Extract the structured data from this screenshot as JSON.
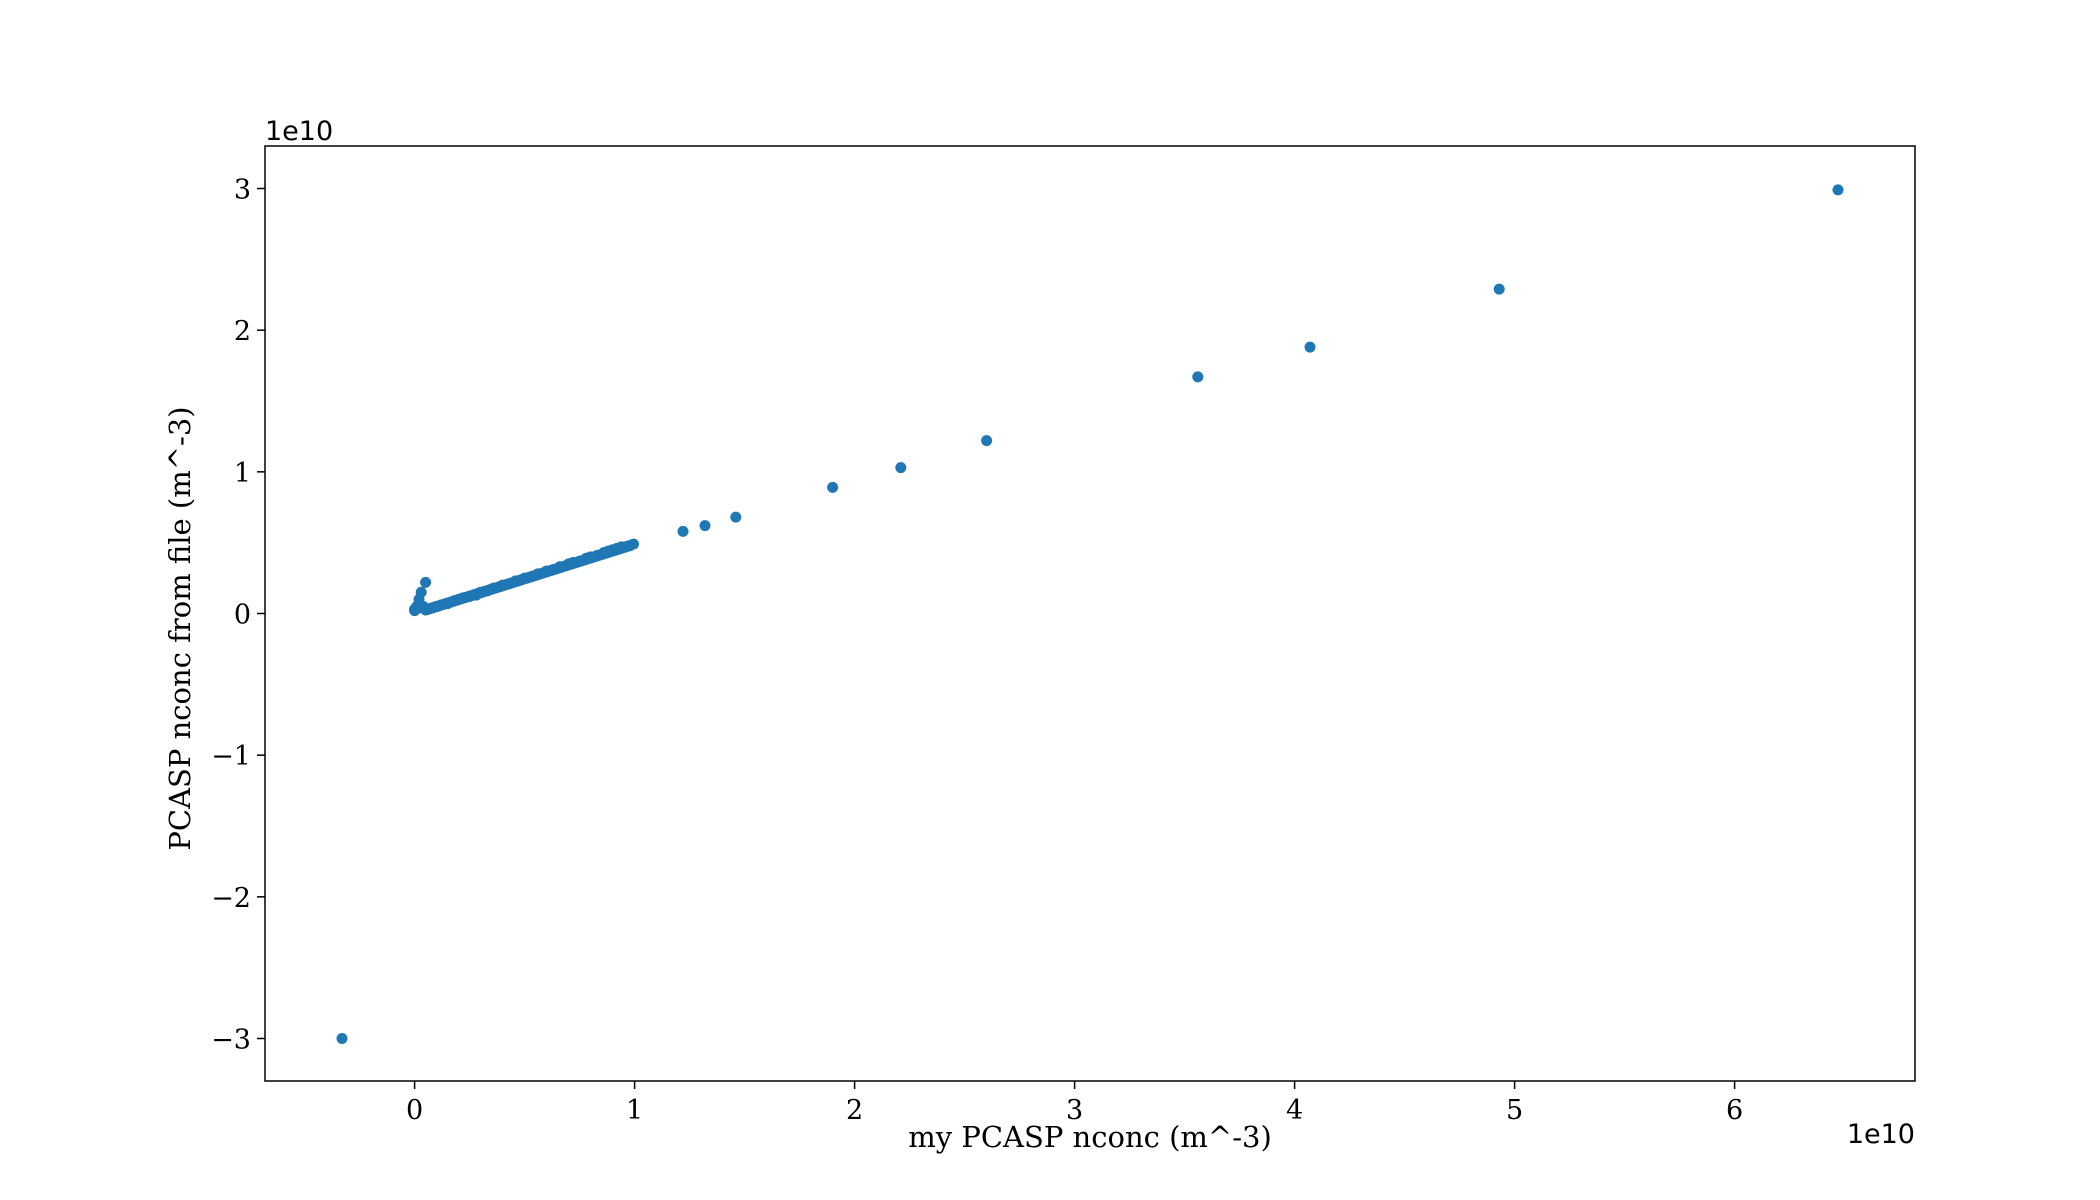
{
  "chart_data": {
    "type": "scatter",
    "title": "",
    "xlabel": "my PCASP nconc (m^-3)",
    "ylabel": "PCASP nconc from file (m^-3)",
    "x_offset_label": "1e10",
    "y_offset_label": "1e10",
    "xlim": [
      -0.68,
      6.82
    ],
    "ylim": [
      -3.3,
      3.3
    ],
    "x_ticks": [
      0,
      1,
      2,
      3,
      4,
      5,
      6
    ],
    "y_ticks": [
      -3,
      -2,
      -1,
      0,
      1,
      2,
      3
    ],
    "x_tick_labels": [
      "0",
      "1",
      "2",
      "3",
      "4",
      "5",
      "6"
    ],
    "y_tick_labels": [
      "−3",
      "−2",
      "−1",
      "0",
      "1",
      "2",
      "3"
    ],
    "grid": false,
    "marker_color": "#1f77b4",
    "series": [
      {
        "x": [
          -0.33,
          0.0,
          0.01,
          0.02,
          0.03,
          0.05,
          0.08,
          0.1,
          0.12,
          0.15,
          0.18,
          0.2,
          0.22,
          0.25,
          0.28,
          0.3,
          0.33,
          0.36,
          0.4,
          0.43,
          0.46,
          0.5,
          0.53,
          0.56,
          0.6,
          0.63,
          0.66,
          0.7,
          0.72,
          0.75,
          0.78,
          0.8,
          0.83,
          0.86,
          0.88,
          0.9,
          0.92,
          0.94,
          0.96,
          0.98,
          0.995,
          1.22,
          1.32,
          1.46,
          1.9,
          2.21,
          2.6,
          3.56,
          4.07,
          4.93,
          6.47
        ],
        "y": [
          -3.0,
          0.02,
          0.05,
          0.1,
          0.15,
          0.22,
          0.04,
          0.05,
          0.06,
          0.07,
          0.09,
          0.1,
          0.11,
          0.12,
          0.13,
          0.15,
          0.16,
          0.18,
          0.2,
          0.21,
          0.23,
          0.25,
          0.26,
          0.28,
          0.3,
          0.31,
          0.33,
          0.35,
          0.36,
          0.37,
          0.39,
          0.4,
          0.41,
          0.43,
          0.44,
          0.45,
          0.46,
          0.47,
          0.47,
          0.48,
          0.49,
          0.58,
          0.62,
          0.68,
          0.89,
          1.03,
          1.22,
          1.67,
          1.88,
          2.29,
          2.99
        ]
      }
    ]
  }
}
